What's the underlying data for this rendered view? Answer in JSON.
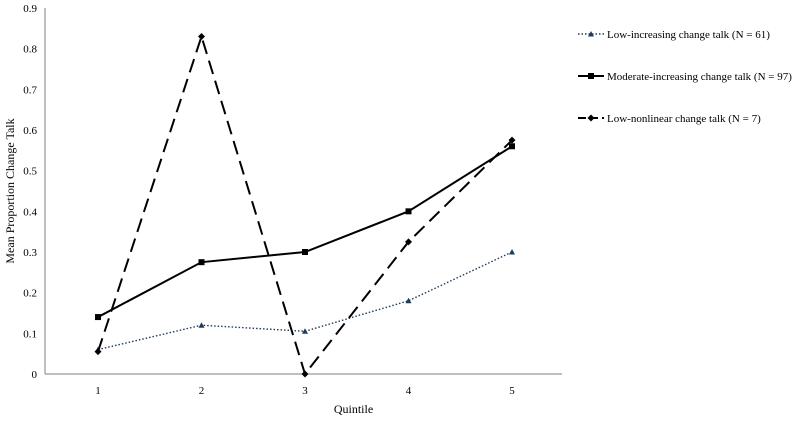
{
  "chart_data": {
    "type": "line",
    "title": "",
    "xlabel": "Quintile",
    "ylabel": "Mean Proportion Change Talk",
    "categories": [
      "1",
      "2",
      "3",
      "4",
      "5"
    ],
    "ylim": [
      0,
      0.9
    ],
    "yticks": [
      "0",
      "0.1",
      "0.2",
      "0.3",
      "0.4",
      "0.5",
      "0.6",
      "0.7",
      "0.8",
      "0.9"
    ],
    "grid": false,
    "legend_position": "right",
    "series": [
      {
        "name": "Low-increasing change talk (N = 61)",
        "values": [
          0.06,
          0.12,
          0.105,
          0.18,
          0.3
        ],
        "color": "#1f3b5a",
        "line_style": "dotted",
        "marker": "triangle"
      },
      {
        "name": "Moderate-increasing change talk (N = 97)",
        "values": [
          0.14,
          0.275,
          0.3,
          0.4,
          0.56
        ],
        "color": "#000000",
        "line_style": "solid",
        "marker": "square"
      },
      {
        "name": "Low-nonlinear change talk (N = 7)",
        "values": [
          0.055,
          0.83,
          0.0,
          0.325,
          0.575
        ],
        "color": "#000000",
        "line_style": "dashed",
        "marker": "diamond"
      }
    ]
  }
}
